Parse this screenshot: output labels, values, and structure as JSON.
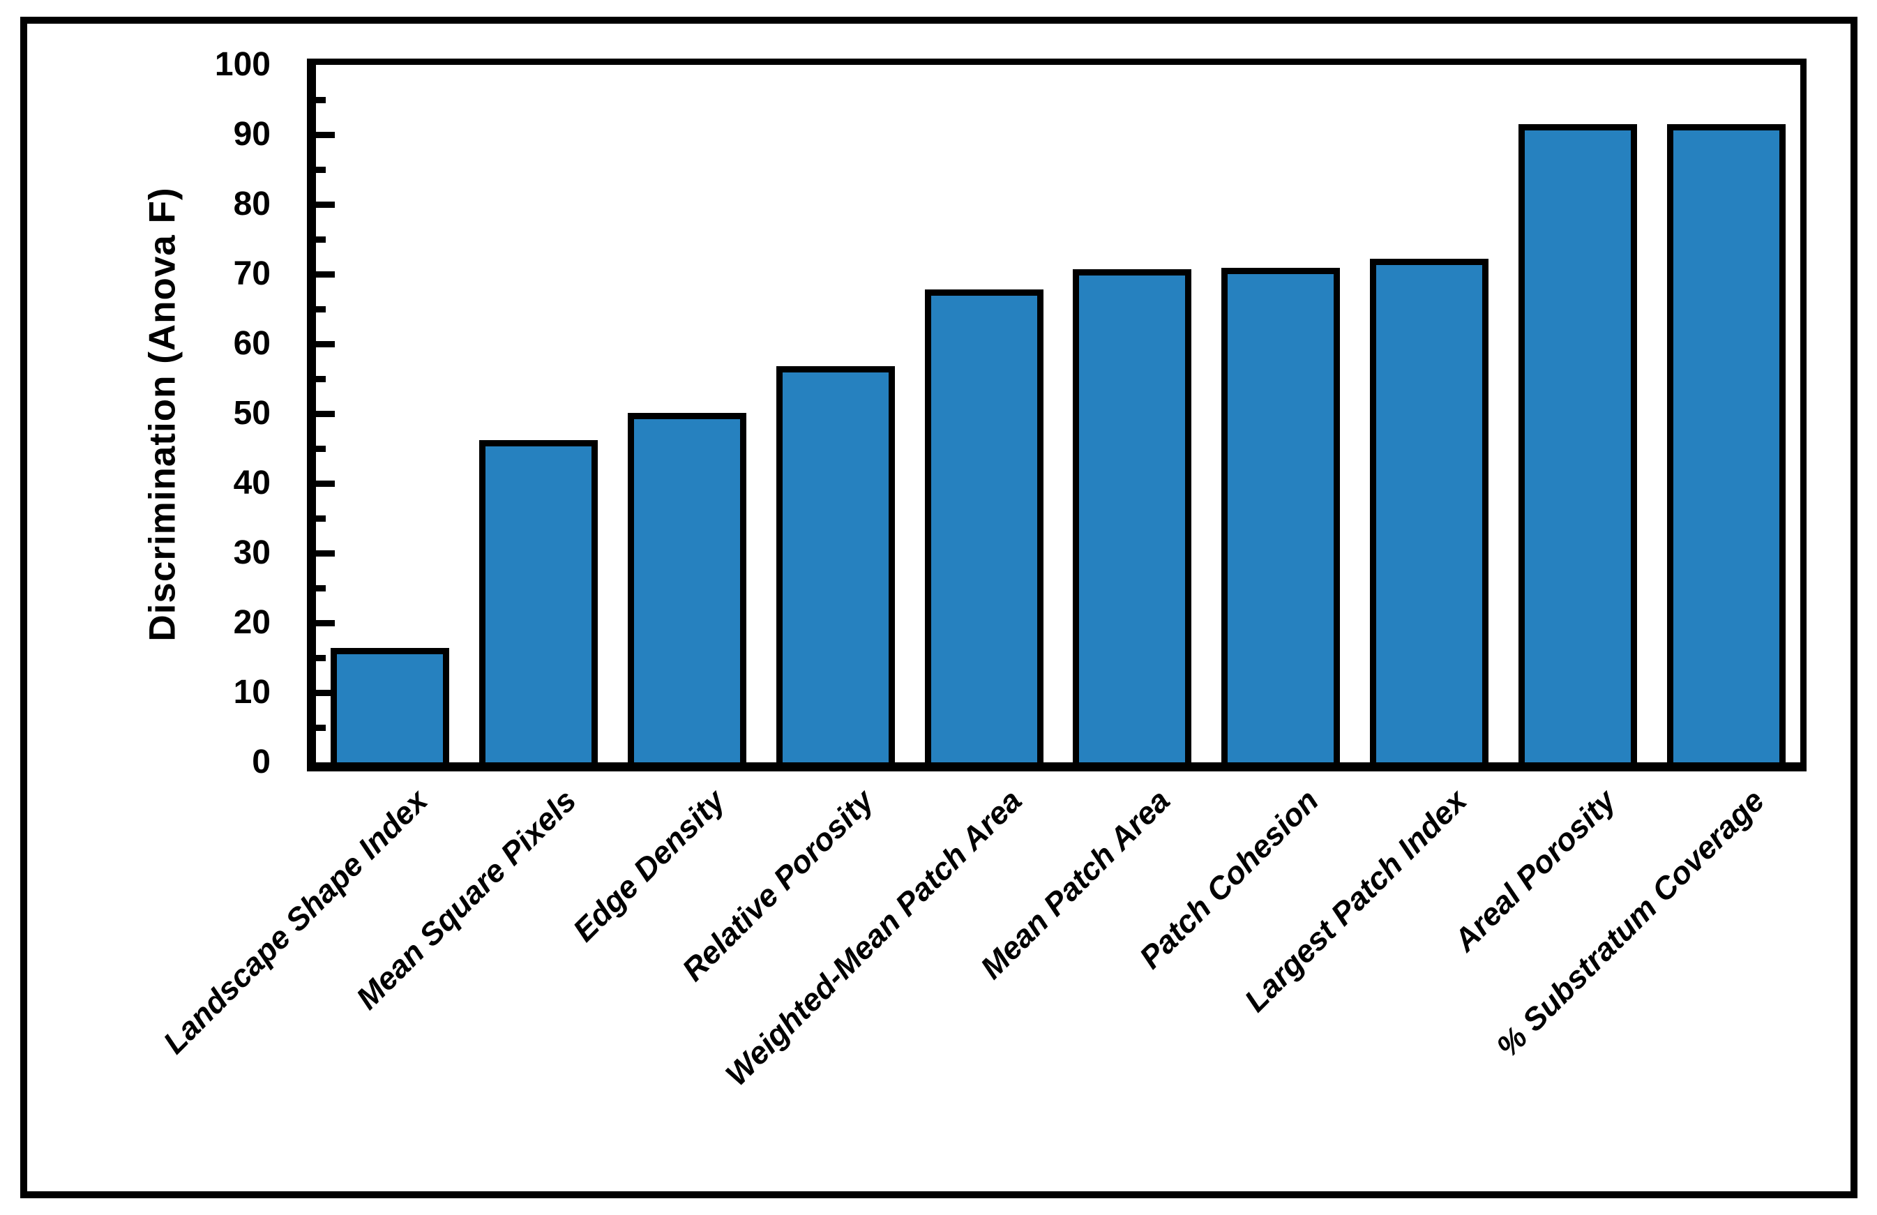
{
  "figure": {
    "background_color": "#ffffff",
    "border_color": "#000000"
  },
  "chart_data": {
    "type": "bar",
    "title": "",
    "xlabel": "",
    "ylabel": "Discrimination (Anova F)",
    "categories": [
      "Landscape Shape Index",
      "Mean Square Pixels",
      "Edge Density",
      "Relative Porosity",
      "Weighted-Mean Patch Area",
      "Mean Patch Area",
      "Patch Cohesion",
      "Largest Patch Index",
      "Areal Porosity",
      "% Substratum Coverage"
    ],
    "values": [
      16.4,
      46.2,
      50.1,
      56.8,
      67.8,
      70.7,
      70.9,
      72.2,
      91.5,
      91.5
    ],
    "ylim": [
      0,
      100
    ],
    "ytick_interval": 10,
    "minor_tick_interval": 5,
    "ytick_labels": [
      "0",
      "10",
      "20",
      "30",
      "40",
      "50",
      "60",
      "70",
      "80",
      "90",
      "100"
    ],
    "grid": "off",
    "legend": "none",
    "tick_style": "inside",
    "bar_color": "#2681BF",
    "bar_border_color": "#000000",
    "bar_width_fraction": 0.8,
    "x_label_rotation_deg": 45
  }
}
